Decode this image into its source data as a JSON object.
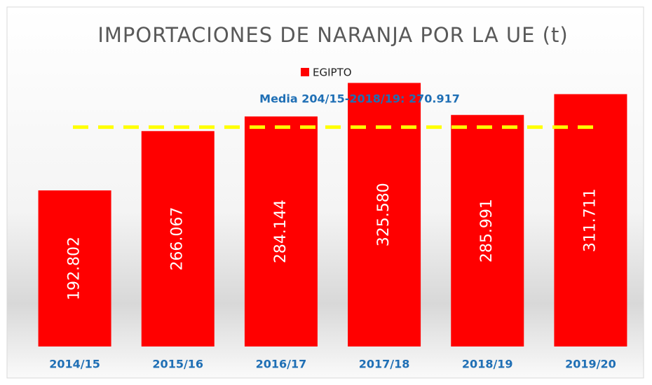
{
  "chart_data": {
    "type": "bar",
    "title": "IMPORTACIONES DE NARANJA POR LA UE (t)",
    "categories": [
      "2014/15",
      "2015/16",
      "2016/17",
      "2017/18",
      "2018/19",
      "2019/20"
    ],
    "series": [
      {
        "name": "EGIPTO",
        "color": "#ff0000",
        "values": [
          192802,
          266067,
          284144,
          325580,
          285991,
          311711
        ],
        "value_labels": [
          "192.802",
          "266.067",
          "284.144",
          "325.580",
          "285.991",
          "311.711"
        ]
      }
    ],
    "mean_line": {
      "value": 270917,
      "label": "Media 204/15-2018/19: 270.917",
      "color": "#ffff00"
    },
    "ylim": [
      0,
      345000
    ]
  }
}
